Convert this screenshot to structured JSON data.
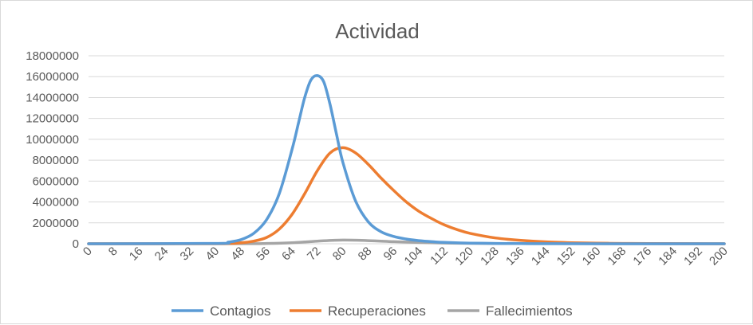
{
  "chart_data": {
    "type": "line",
    "title": "Actividad",
    "xlabel": "",
    "ylabel": "",
    "xlim": [
      0,
      200
    ],
    "ylim": [
      0,
      18000000
    ],
    "xticks": [
      0,
      8,
      16,
      24,
      32,
      40,
      48,
      56,
      64,
      72,
      80,
      88,
      96,
      104,
      112,
      120,
      128,
      136,
      144,
      152,
      160,
      168,
      176,
      184,
      192,
      200
    ],
    "yticks": [
      0,
      2000000,
      4000000,
      6000000,
      8000000,
      10000000,
      12000000,
      14000000,
      16000000,
      18000000
    ],
    "grid": "horizontal",
    "legend_position": "bottom",
    "series": [
      {
        "name": "Contagios",
        "color": "#5b9bd5",
        "x": [
          0,
          40,
          44,
          48,
          52,
          56,
          60,
          64,
          66,
          68,
          70,
          72,
          74,
          76,
          78,
          80,
          84,
          88,
          92,
          96,
          100,
          104,
          108,
          112,
          120,
          128,
          136,
          144,
          160,
          200
        ],
        "y": [
          0,
          30000,
          150000,
          400000,
          1000000,
          2300000,
          4800000,
          9000000,
          11500000,
          14000000,
          15700000,
          16100000,
          15500000,
          13300000,
          10500000,
          7800000,
          4100000,
          2100000,
          1150000,
          700000,
          450000,
          300000,
          200000,
          130000,
          60000,
          30000,
          15000,
          8000,
          2000,
          0
        ]
      },
      {
        "name": "Recuperaciones",
        "color": "#ed7d31",
        "x": [
          0,
          40,
          48,
          52,
          56,
          60,
          64,
          68,
          72,
          76,
          80,
          84,
          88,
          92,
          96,
          100,
          104,
          108,
          112,
          116,
          120,
          128,
          136,
          144,
          152,
          160,
          168,
          176,
          200
        ],
        "y": [
          0,
          10000,
          100000,
          250000,
          600000,
          1400000,
          2800000,
          4800000,
          7000000,
          8700000,
          9200000,
          8700000,
          7600000,
          6300000,
          5100000,
          4000000,
          3100000,
          2400000,
          1800000,
          1350000,
          1000000,
          560000,
          320000,
          180000,
          100000,
          55000,
          30000,
          15000,
          2000
        ]
      },
      {
        "name": "Fallecimientos",
        "color": "#a5a5a5",
        "x": [
          0,
          48,
          56,
          64,
          72,
          80,
          88,
          96,
          104,
          112,
          120,
          136,
          152,
          200
        ],
        "y": [
          0,
          5000,
          30000,
          100000,
          250000,
          350000,
          300000,
          200000,
          120000,
          70000,
          40000,
          15000,
          5000,
          0
        ]
      }
    ]
  }
}
